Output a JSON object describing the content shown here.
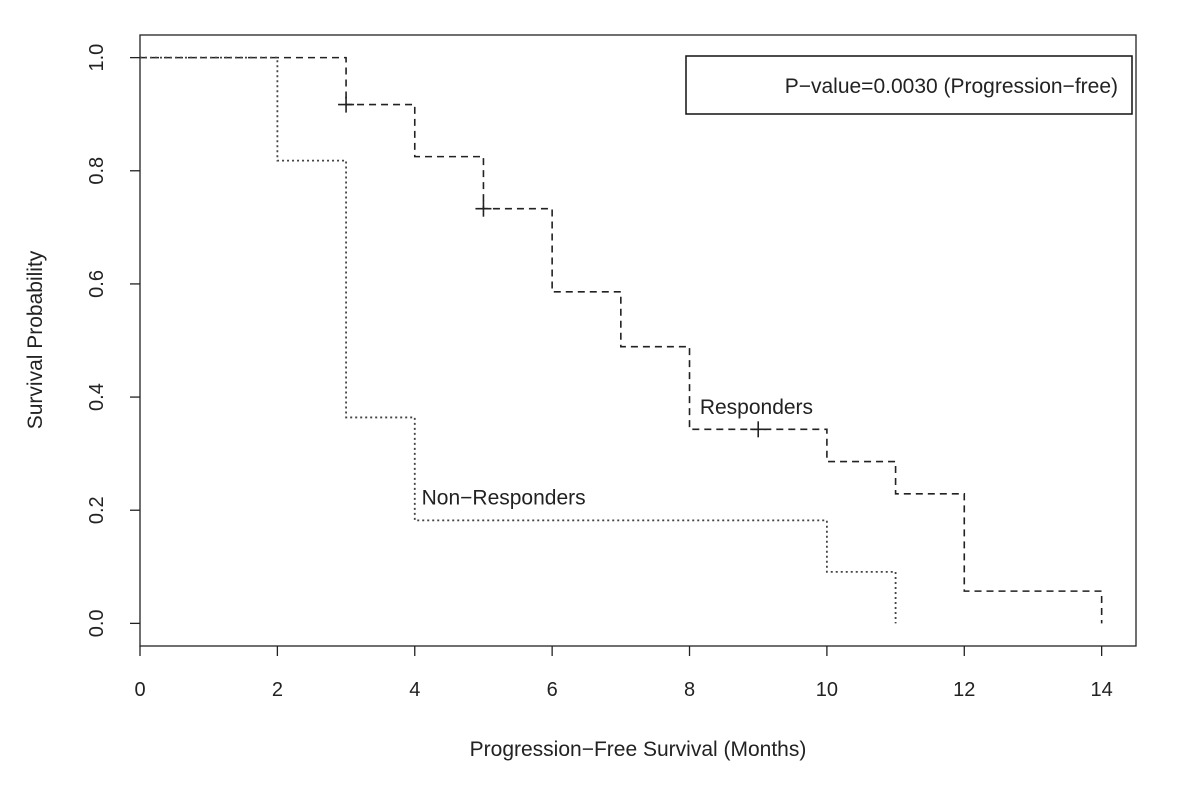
{
  "chart_data": {
    "type": "line",
    "subtype": "kaplan-meier-step",
    "xlabel": "Progression−Free Survival (Months)",
    "ylabel": "Survival Probability",
    "xlim": [
      0,
      14.5
    ],
    "ylim": [
      -0.04,
      1.04
    ],
    "xticks": [
      "0",
      "2",
      "4",
      "6",
      "8",
      "10",
      "12",
      "14"
    ],
    "yticks": [
      "0.0",
      "0.2",
      "0.4",
      "0.6",
      "0.8",
      "1.0"
    ],
    "grid": false,
    "legend_box_text": "P−value=0.0030 (Progression−free)",
    "legend_placement": "top-right",
    "series": [
      {
        "name": "Responders",
        "style": "dashed",
        "color": "#222222",
        "steps": [
          [
            0,
            1.0
          ],
          [
            3,
            0.917
          ],
          [
            4,
            0.825
          ],
          [
            5,
            0.733
          ],
          [
            6,
            0.586
          ],
          [
            7,
            0.489
          ],
          [
            8,
            0.343
          ],
          [
            10,
            0.286
          ],
          [
            11,
            0.229
          ],
          [
            12,
            0.057
          ],
          [
            14,
            0.0
          ]
        ],
        "censored": [
          [
            3,
            0.917
          ],
          [
            5,
            0.733
          ],
          [
            9,
            0.343
          ]
        ],
        "label_position": [
          8.15,
          0.37
        ]
      },
      {
        "name": "Non−Responders",
        "style": "dotted",
        "color": "#444444",
        "steps": [
          [
            0,
            1.0
          ],
          [
            2,
            0.818
          ],
          [
            3,
            0.364
          ],
          [
            4,
            0.182
          ],
          [
            10,
            0.091
          ],
          [
            11,
            0.0
          ]
        ],
        "censored": [],
        "label_position": [
          4.1,
          0.21
        ]
      }
    ]
  }
}
